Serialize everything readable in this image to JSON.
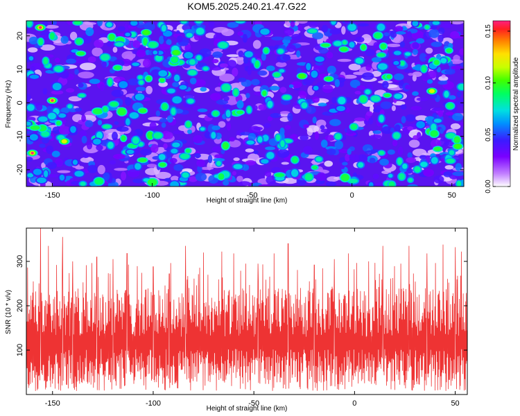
{
  "title": "KOM5.2025.240.21.47.G22",
  "chart_data": [
    {
      "type": "heatmap",
      "xlabel": "Height of straight line (km)",
      "ylabel": "Frequency (Hz)",
      "xlim": [
        -163,
        56
      ],
      "ylim": [
        -25,
        24.5
      ],
      "xticks": [
        -150,
        -100,
        -50,
        0,
        50
      ],
      "yticks": [
        -20,
        -10,
        0,
        10,
        20
      ],
      "colorbar": {
        "label": "Normalized spectral amplitude",
        "range": [
          0,
          0.16
        ],
        "ticks": [
          "0.00",
          "0.05",
          "0.10",
          "0.15"
        ]
      },
      "hotspots": [
        {
          "x": -156,
          "y": 22.5,
          "value": 0.16
        },
        {
          "x": -150,
          "y": 0.7,
          "value": 0.16
        },
        {
          "x": -160,
          "y": -15,
          "value": 0.16
        },
        {
          "x": -144,
          "y": -11.5,
          "value": 0.12
        },
        {
          "x": -103,
          "y": 21,
          "value": 0.1
        },
        {
          "x": 40,
          "y": 3.5,
          "value": 0.12
        },
        {
          "x": -25,
          "y": 8,
          "value": 0.1
        },
        {
          "x": -88,
          "y": 15,
          "value": 0.1
        },
        {
          "x": 53,
          "y": -13,
          "value": 0.1
        }
      ]
    },
    {
      "type": "line",
      "xlabel": "Height of straight line (km)",
      "ylabel": "SNR (10 * v/v)",
      "xlim": [
        -163,
        56
      ],
      "ylim": [
        0,
        375
      ],
      "xticks": [
        -150,
        -100,
        -50,
        0,
        50
      ],
      "yticks": [
        100,
        200,
        300
      ],
      "series": [
        {
          "name": "SNR",
          "color": "#ee3333",
          "baseline_mean": 105,
          "peaks": [
            {
              "x": -156,
              "y": 375
            },
            {
              "x": -152,
              "y": 335
            },
            {
              "x": -148,
              "y": 292
            },
            {
              "x": -145,
              "y": 355
            },
            {
              "x": -140,
              "y": 300
            },
            {
              "x": -128,
              "y": 310
            },
            {
              "x": -120,
              "y": 305
            },
            {
              "x": -113,
              "y": 318
            },
            {
              "x": -100,
              "y": 288
            },
            {
              "x": -92,
              "y": 272
            },
            {
              "x": -84,
              "y": 335
            },
            {
              "x": -75,
              "y": 320
            },
            {
              "x": -66,
              "y": 322
            },
            {
              "x": -60,
              "y": 318
            },
            {
              "x": -54,
              "y": 295
            },
            {
              "x": -48,
              "y": 295
            },
            {
              "x": -40,
              "y": 318
            },
            {
              "x": -33,
              "y": 340
            },
            {
              "x": -20,
              "y": 292
            },
            {
              "x": -10,
              "y": 305
            },
            {
              "x": -3,
              "y": 318
            },
            {
              "x": 7,
              "y": 300
            },
            {
              "x": 14,
              "y": 335
            },
            {
              "x": 23,
              "y": 295
            },
            {
              "x": 27,
              "y": 335
            },
            {
              "x": 36,
              "y": 318
            },
            {
              "x": 44,
              "y": 338
            },
            {
              "x": 50,
              "y": 332
            },
            {
              "x": 53,
              "y": 322
            }
          ]
        }
      ]
    }
  ]
}
